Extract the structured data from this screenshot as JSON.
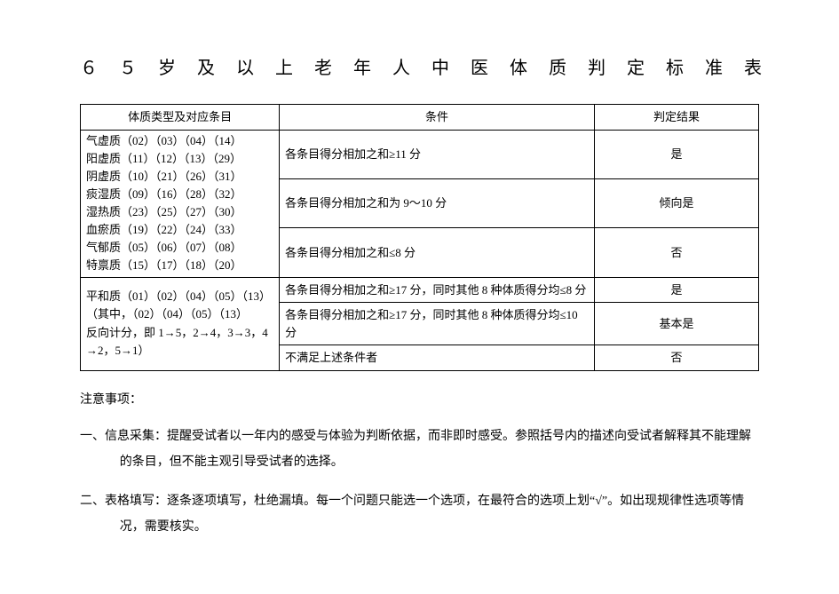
{
  "title": "６５岁及以上老年人中医体质判定标准表",
  "table": {
    "headers": {
      "type": "体质类型及对应条目",
      "condition": "条件",
      "result": "判定结果"
    },
    "group1": {
      "type_lines": [
        "气虚质（02）（03）（04）（14）",
        "阳虚质（11）（12）（13）（29）",
        "阴虚质（10）（21）（26）（31）",
        "痰湿质（09）（16）（28）（32）",
        "湿热质（23）（25）（27）（30）",
        "血瘀质（19）（22）（24）（33）",
        "气郁质（05）（06）（07）（08）",
        "特禀质（15）（17）（18）（20）"
      ],
      "rows": [
        {
          "condition": "各条目得分相加之和≥11 分",
          "result": "是"
        },
        {
          "condition": "各条目得分相加之和为 9～10 分",
          "result": "倾向是"
        },
        {
          "condition": "各条目得分相加之和≤8 分",
          "result": "否"
        }
      ]
    },
    "group2": {
      "type_lines": [
        "平和质（01）（02）（04）（05）（13）",
        "（其中，（02）（04）（05）（13）",
        "反向计分，即 1→5，2→4，3→3，4",
        "→2，5→1）"
      ],
      "rows": [
        {
          "condition": "各条目得分相加之和≥17 分，同时其他 8 种体质得分均≤8 分",
          "result": "是"
        },
        {
          "condition": "各条目得分相加之和≥17 分，同时其他 8 种体质得分均≤10 分",
          "result": "基本是"
        },
        {
          "condition": "不满足上述条件者",
          "result": "否"
        }
      ]
    }
  },
  "notes": {
    "heading": "注意事项：",
    "items": [
      "一、信息采集：提醒受试者以一年内的感受与体验为判断依据，而非即时感受。参照括号内的描述向受试者解释其不能理解的条目，但不能主观引导受试者的选择。",
      "二、表格填写：逐条逐项填写，杜绝漏填。每一个问题只能选一个选项，在最符合的选项上划“√”。如出现规律性选项等情况，需要核实。"
    ]
  }
}
